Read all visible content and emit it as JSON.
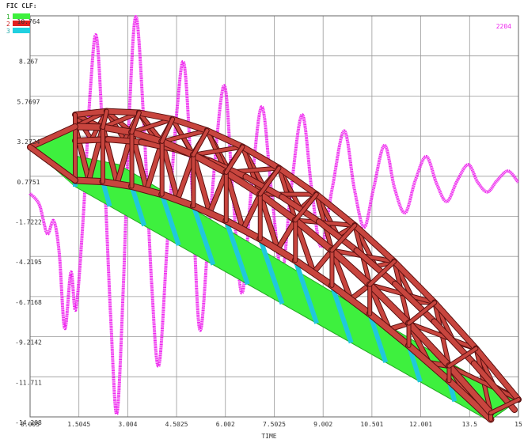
{
  "chart_data": {
    "type": "line",
    "legend_title": "FIC CLF:",
    "legend_items": [
      {
        "label": "1",
        "color": "#3ef03e"
      },
      {
        "label": "2",
        "color": "#e02020"
      },
      {
        "label": "3",
        "color": "#20d0e0"
      }
    ],
    "xlabel": "TIME",
    "x": [
      0.0,
      0.29,
      0.53,
      0.73,
      0.9,
      1.07,
      1.26,
      1.41,
      1.63,
      1.85,
      2.04,
      2.24,
      2.48,
      2.67,
      2.87,
      3.06,
      3.26,
      3.5,
      3.74,
      3.96,
      4.23,
      4.52,
      4.74,
      4.98,
      5.22,
      5.52,
      5.95,
      6.22,
      6.51,
      6.8,
      7.12,
      7.41,
      7.73,
      8.02,
      8.36,
      8.65,
      8.94,
      9.28,
      9.65,
      9.96,
      10.26,
      10.55,
      10.89,
      11.2,
      11.52,
      11.83,
      12.17,
      12.49,
      12.8,
      13.12,
      13.46,
      13.75,
      14.05,
      14.34,
      14.68,
      14.99
    ],
    "series": [
      {
        "name": "2204",
        "color": "#ee22ee",
        "values": [
          -0.3,
          -1.0,
          -2.8,
          -2.0,
          -4.0,
          -8.7,
          -5.2,
          -7.5,
          -2.0,
          6.0,
          9.5,
          3.0,
          -8.0,
          -14.0,
          -6.0,
          5.0,
          10.7,
          4.0,
          -6.0,
          -11.0,
          -3.0,
          5.0,
          7.7,
          0.0,
          -8.8,
          -2.0,
          6.4,
          0.0,
          -6.5,
          0.0,
          5.1,
          0.0,
          -5.2,
          0.0,
          4.6,
          0.0,
          -3.6,
          0.0,
          3.6,
          0.0,
          -2.4,
          0.0,
          2.7,
          0.0,
          -1.5,
          0.5,
          2.0,
          0.3,
          -0.8,
          0.5,
          1.5,
          0.4,
          -0.2,
          0.5,
          1.1,
          0.4
        ]
      }
    ],
    "xlim": [
      0.005,
      15
    ],
    "xticks": [
      0.005,
      1.5045,
      3.004,
      4.5025,
      6.002,
      7.5025,
      9.002,
      10.501,
      12.001,
      13.5,
      15
    ],
    "ylim": [
      -14.208,
      10.764
    ],
    "yticks": [
      -14.208,
      -11.711,
      -9.2142,
      -6.7168,
      -4.2195,
      -1.7222,
      0.7751,
      3.2724,
      5.7697,
      8.267,
      10.764
    ],
    "grid": true
  }
}
